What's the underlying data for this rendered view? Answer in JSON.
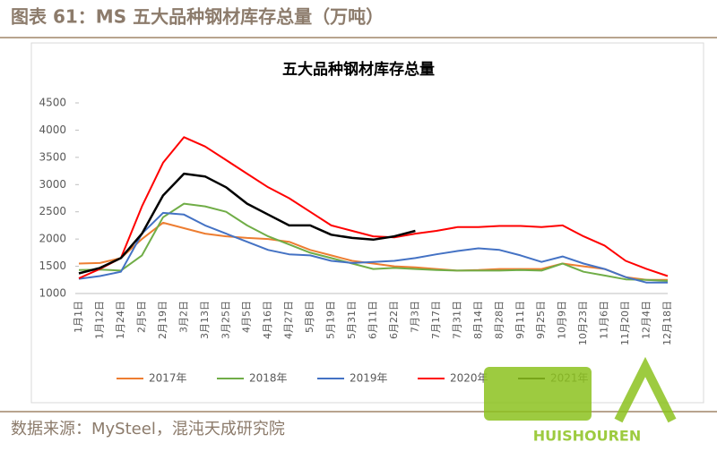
{
  "header": "图表 61：MS 五大品种钢材库存总量（万吨）",
  "source": "数据来源：MySteel，混沌天成研究院",
  "watermark": "HUISHOUREN",
  "chart_data": {
    "type": "line",
    "title": "五大品种钢材库存总量",
    "categories": [
      "1月1日",
      "1月12日",
      "1月24日",
      "2月5日",
      "2月19日",
      "3月2日",
      "3月13日",
      "3月25日",
      "4月5日",
      "4月16日",
      "4月27日",
      "5月8日",
      "5月19日",
      "5月31日",
      "6月11日",
      "6月22日",
      "7月3日",
      "7月17日",
      "7月31日",
      "8月14日",
      "8月28日",
      "9月11日",
      "9月25日",
      "10月9日",
      "10月23日",
      "11月6日",
      "11月20日",
      "12月4日",
      "12月18日"
    ],
    "ylim": [
      1000,
      4500
    ],
    "yticks": [
      1000,
      1500,
      2000,
      2500,
      3000,
      3500,
      4000,
      4500
    ],
    "legend": "bottom",
    "series": [
      {
        "name": "2017年",
        "color": "#ed7d31",
        "values": [
          1550,
          1560,
          1650,
          2000,
          2300,
          2200,
          2100,
          2050,
          2020,
          2000,
          1950,
          1800,
          1700,
          1600,
          1550,
          1500,
          1480,
          1450,
          1420,
          1430,
          1450,
          1450,
          1450,
          1550,
          1500,
          1450,
          1300,
          1250,
          1250
        ]
      },
      {
        "name": "2018年",
        "color": "#70ad47",
        "values": [
          1430,
          1440,
          1420,
          1700,
          2400,
          2650,
          2600,
          2500,
          2250,
          2050,
          1900,
          1750,
          1650,
          1550,
          1450,
          1470,
          1450,
          1430,
          1420,
          1420,
          1420,
          1430,
          1420,
          1550,
          1400,
          1330,
          1260,
          1250,
          1230
        ]
      },
      {
        "name": "2019年",
        "color": "#4472c4",
        "values": [
          1270,
          1320,
          1400,
          2100,
          2480,
          2450,
          2250,
          2100,
          1950,
          1800,
          1720,
          1700,
          1600,
          1560,
          1580,
          1600,
          1650,
          1720,
          1780,
          1830,
          1800,
          1700,
          1580,
          1680,
          1550,
          1450,
          1300,
          1200,
          1200
        ]
      },
      {
        "name": "2020年",
        "color": "#ff0000",
        "values": [
          1280,
          1450,
          1650,
          2600,
          3400,
          3870,
          3700,
          3450,
          3200,
          2950,
          2750,
          2500,
          2250,
          2150,
          2050,
          2030,
          2100,
          2150,
          2220,
          2220,
          2240,
          2240,
          2220,
          2250,
          2050,
          1880,
          1600,
          1450,
          1320
        ]
      },
      {
        "name": "2021年",
        "color": "#000000",
        "values": [
          1370,
          1470,
          1650,
          2100,
          2800,
          3200,
          3150,
          2950,
          2650,
          2450,
          2250,
          2250,
          2080,
          2020,
          1990,
          2050,
          2150,
          null,
          null,
          null,
          null,
          null,
          null,
          null,
          null,
          null,
          null,
          null,
          null
        ]
      }
    ]
  }
}
